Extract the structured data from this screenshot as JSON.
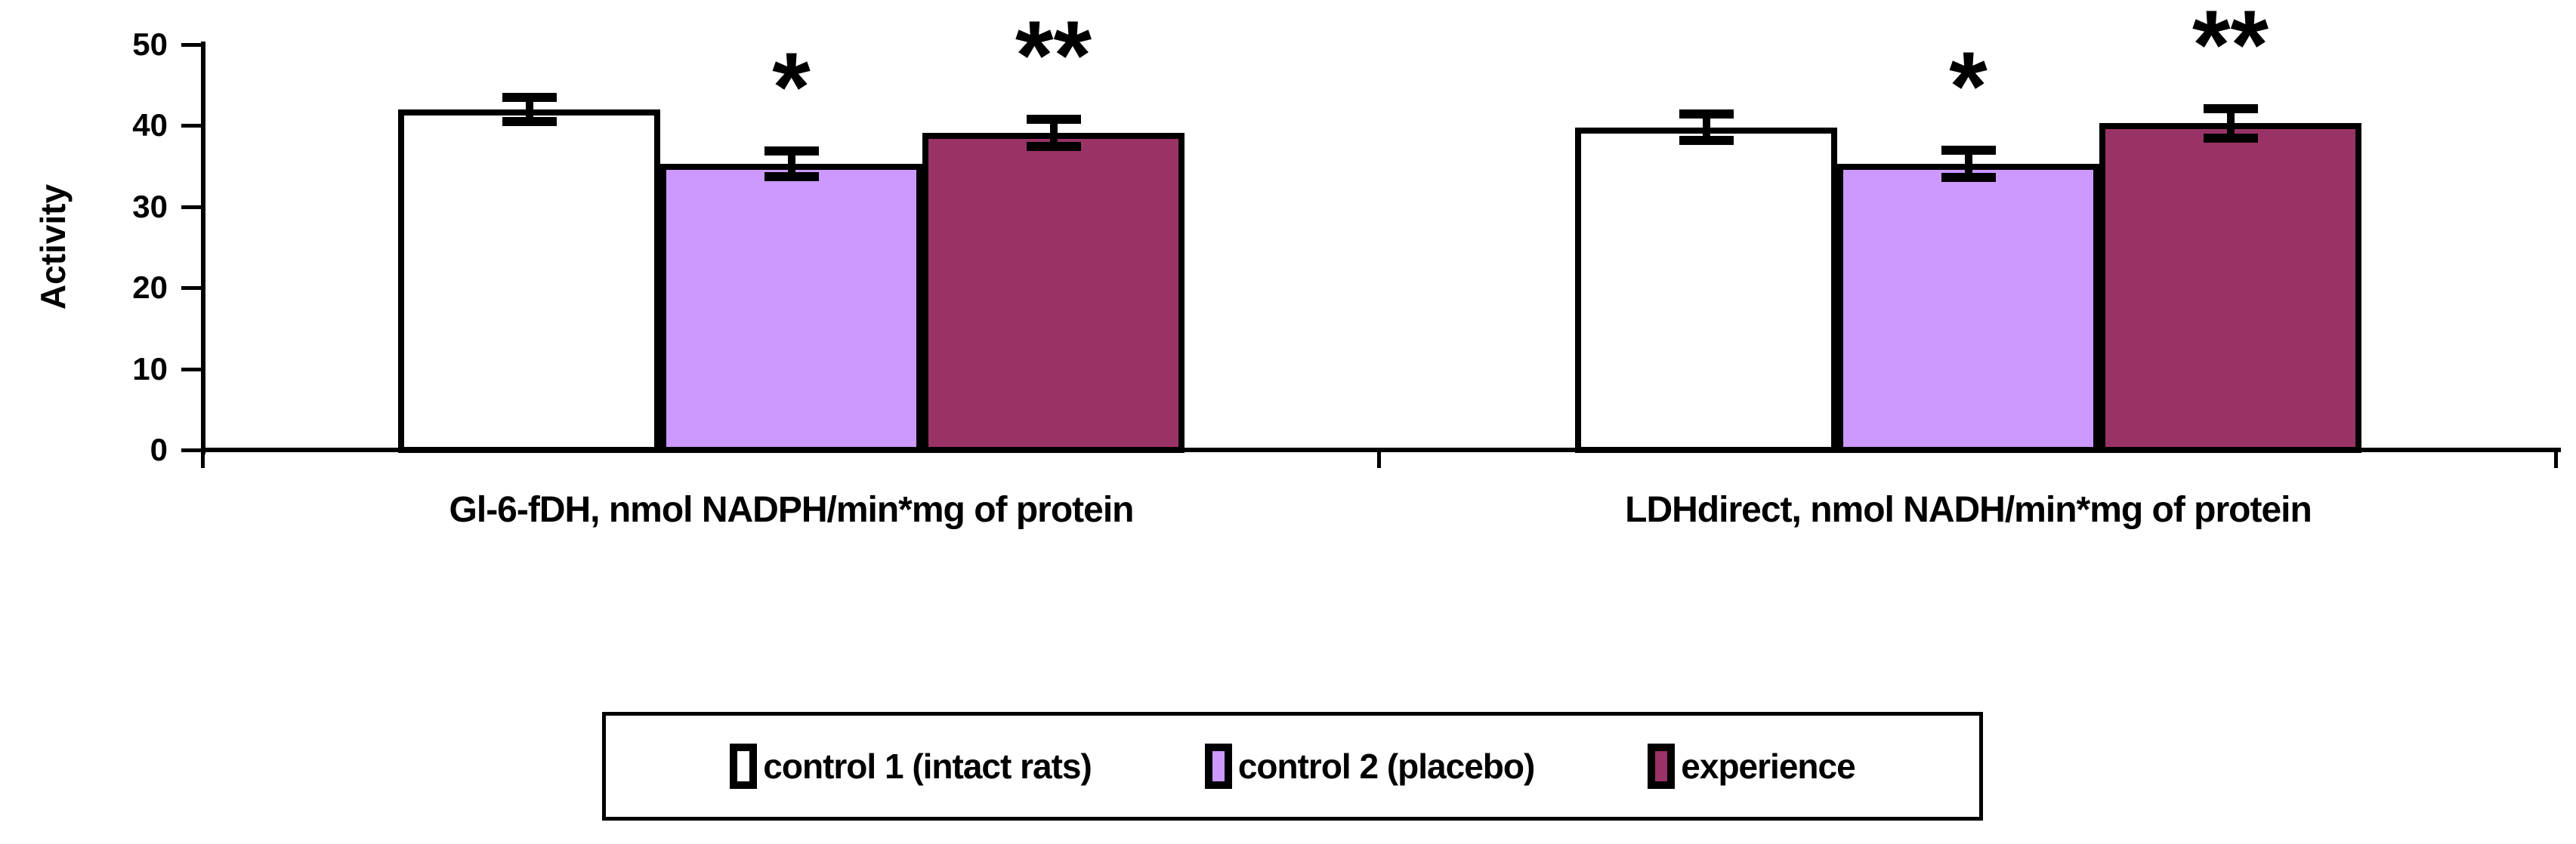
{
  "chart_data": {
    "type": "bar",
    "title": "",
    "xlabel": "",
    "ylabel": "Activity",
    "ylim": [
      0,
      50
    ],
    "yticks": [
      0,
      10,
      20,
      30,
      40,
      50
    ],
    "grid": false,
    "legend_position": "bottom",
    "categories": [
      "Gl-6-fDH, nmol NADPH/min*mg of protein",
      "LDHdirect, nmol NADH/min*mg of protein"
    ],
    "series": [
      {
        "name": "control 1 (intact rats)",
        "fill": "#FFFFFF",
        "values": [
          42.0,
          39.8
        ],
        "errors": [
          1.5,
          1.6
        ],
        "annotation": ""
      },
      {
        "name": "control 2 (placebo)",
        "fill": "#CC99FF",
        "values": [
          35.3,
          35.3
        ],
        "errors": [
          1.6,
          1.7
        ],
        "annotation": "*"
      },
      {
        "name": "experience",
        "fill": "#993366",
        "values": [
          39.1,
          40.3
        ],
        "errors": [
          1.7,
          1.8
        ],
        "annotation": "**"
      }
    ],
    "annotations_meaning": [
      "*",
      "**"
    ],
    "colors": {
      "bar_border": "#000000",
      "axis": "#000000",
      "text": "#000000",
      "background": "#FFFFFF"
    }
  }
}
